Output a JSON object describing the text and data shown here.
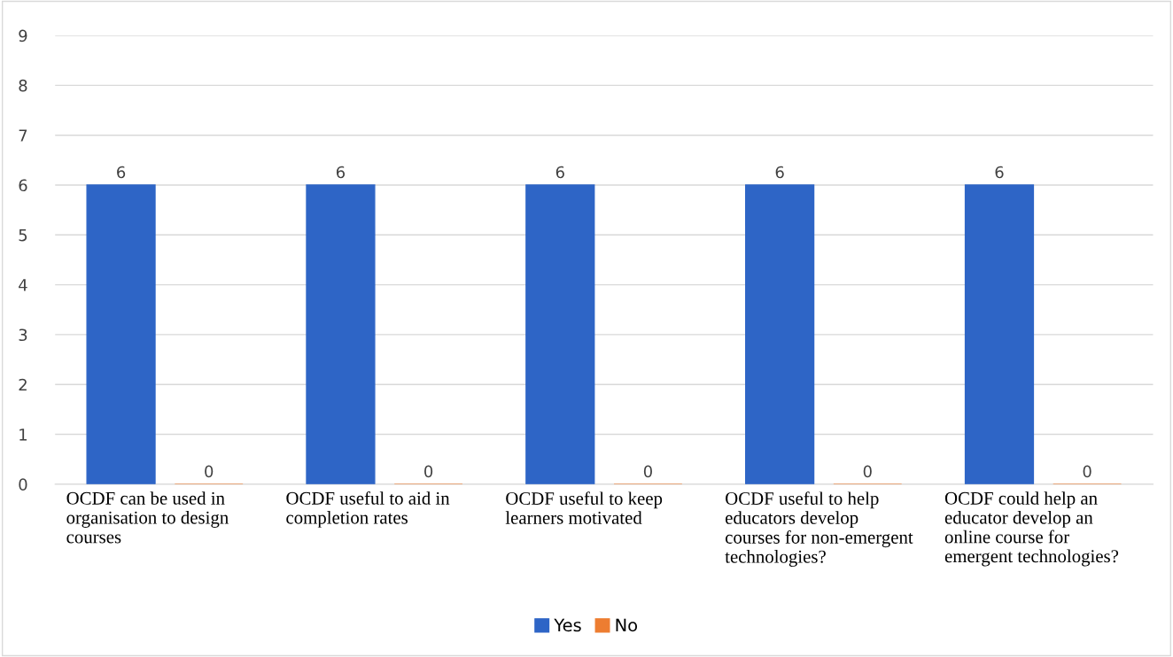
{
  "chart_data": {
    "type": "bar",
    "categories": [
      "OCDF can be used in\norganisation to design\ncourses",
      "OCDF useful to aid in\ncompletion rates",
      "OCDF useful to keep\nlearners motivated",
      "OCDF useful to help\neducators develop\ncourses for non-emergent\ntechnologies?",
      "OCDF could help an\neducator develop an\nonline course for\nemergent technologies?"
    ],
    "series": [
      {
        "name": "Yes",
        "color": "#2e65c6",
        "values": [
          6,
          6,
          6,
          6,
          6
        ]
      },
      {
        "name": "No",
        "color": "#ed7d31",
        "values": [
          0,
          0,
          0,
          0,
          0
        ]
      }
    ],
    "ylim": [
      0,
      9
    ],
    "yticks": [
      0,
      1,
      2,
      3,
      4,
      5,
      6,
      7,
      8,
      9
    ],
    "grid": "y",
    "legend": "bottom",
    "data_labels": true
  }
}
